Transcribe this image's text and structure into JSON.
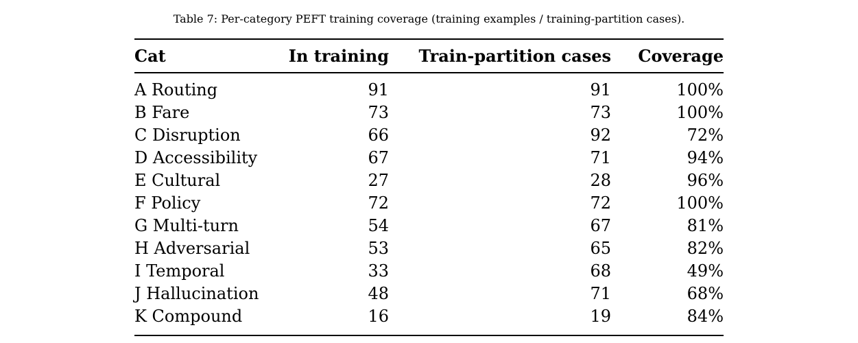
{
  "caption": "Table 7: Per-category PEFT training coverage (training examples / training-partition cases).",
  "table": {
    "headers": [
      "Cat",
      "In training",
      "Train-partition cases",
      "Coverage"
    ],
    "rows": [
      [
        "A Routing",
        "91",
        "91",
        "100%"
      ],
      [
        "B Fare",
        "73",
        "73",
        "100%"
      ],
      [
        "C Disruption",
        "66",
        "92",
        "72%"
      ],
      [
        "D Accessibility",
        "67",
        "71",
        "94%"
      ],
      [
        "E Cultural",
        "27",
        "28",
        "96%"
      ],
      [
        "F Policy",
        "72",
        "72",
        "100%"
      ],
      [
        "G Multi-turn",
        "54",
        "67",
        "81%"
      ],
      [
        "H Adversarial",
        "53",
        "65",
        "82%"
      ],
      [
        "I Temporal",
        "33",
        "68",
        "49%"
      ],
      [
        "J Hallucination",
        "48",
        "71",
        "68%"
      ],
      [
        "K Compound",
        "16",
        "19",
        "84%"
      ]
    ]
  }
}
